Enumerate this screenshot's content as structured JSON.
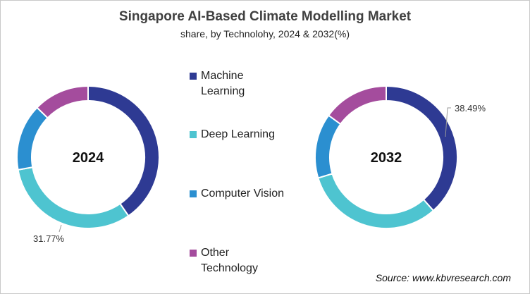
{
  "chart_data": {
    "type": "pie",
    "title": "Singapore AI-Based Climate Modelling Market",
    "subtitle": "share, by Technolohy, 2024 & 2032(%)",
    "categories": [
      "Machine Learning",
      "Deep Learning",
      "Computer Vision",
      "Other Technology"
    ],
    "colors": [
      "#2e3a93",
      "#4ec4d0",
      "#2b8fd0",
      "#a44c9d"
    ],
    "legend_position": "center",
    "series": [
      {
        "name": "2024",
        "values": [
          40.4,
          31.77,
          15.1,
          12.73
        ],
        "label": "31.77%"
      },
      {
        "name": "2032",
        "values": [
          38.49,
          31.8,
          14.7,
          15.01
        ],
        "label": "38.49%"
      }
    ]
  },
  "legend": {
    "items": [
      "Machine\nLearning",
      "Deep Learning",
      "Computer Vision",
      "Other\nTechnology"
    ]
  },
  "source": "Source: www.kbvresearch.com"
}
